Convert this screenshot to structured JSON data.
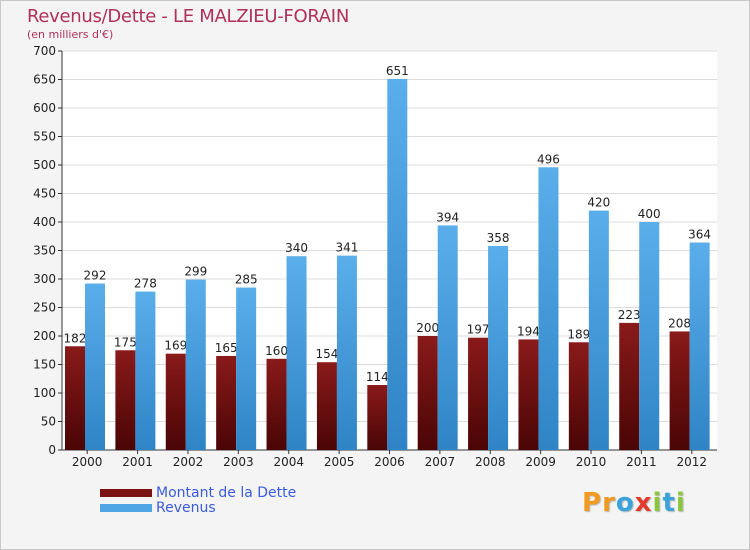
{
  "title": "Revenus/Dette - LE MALZIEU-FORAIN",
  "subtitle": "(en milliers d'€)",
  "logo": {
    "text": "Proxiti",
    "colors": [
      "#f29a1f",
      "#f29a1f",
      "#3aa3dc",
      "#e23b2e",
      "#8cc63f",
      "#3aa3dc",
      "#8cc63f"
    ]
  },
  "chart_data": {
    "type": "bar",
    "categories": [
      "2000",
      "2001",
      "2002",
      "2003",
      "2004",
      "2005",
      "2006",
      "2007",
      "2008",
      "2009",
      "2010",
      "2011",
      "2012"
    ],
    "series": [
      {
        "name": "Montant de la Dette",
        "color": "#7a1212",
        "values": [
          182,
          175,
          169,
          165,
          160,
          154,
          114,
          200,
          197,
          194,
          189,
          223,
          208
        ]
      },
      {
        "name": "Revenus",
        "color": "#4fa6e4",
        "values": [
          292,
          278,
          299,
          285,
          340,
          341,
          651,
          394,
          358,
          496,
          420,
          400,
          364
        ]
      }
    ],
    "ylim": [
      0,
      700
    ],
    "yticks": [
      0,
      50,
      100,
      150,
      200,
      250,
      300,
      350,
      400,
      450,
      500,
      550,
      600,
      650,
      700
    ],
    "grid": true,
    "legend": "bottom-left"
  }
}
